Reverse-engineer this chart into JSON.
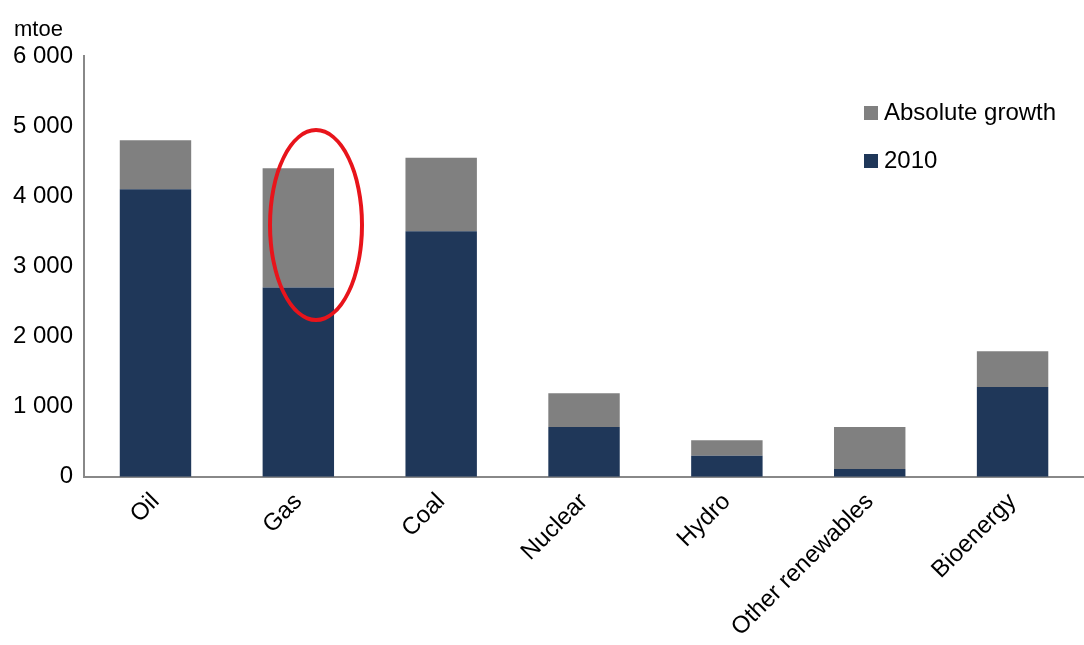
{
  "chart_data": {
    "type": "bar",
    "ylabel": "mtoe",
    "stacked": true,
    "legend": "top right",
    "grid": false,
    "categories": [
      "Oil",
      "Gas",
      "Coal",
      "Nuclear",
      "Hydro",
      "Other renewables",
      "Bioenergy"
    ],
    "series": [
      {
        "name": "2010",
        "color": "#1f3759",
        "values": [
          4100,
          2700,
          3500,
          710,
          300,
          110,
          1280
        ]
      },
      {
        "name": "Absolute growth",
        "color": "#808080",
        "values": [
          700,
          1700,
          1050,
          480,
          220,
          600,
          510
        ]
      }
    ],
    "ylim": [
      0,
      6000
    ],
    "yticks": [
      {
        "value": 0,
        "label": "0"
      },
      {
        "value": 1000,
        "label": "1 000"
      },
      {
        "value": 2000,
        "label": "2 000"
      },
      {
        "value": 3000,
        "label": "3 000"
      },
      {
        "value": 4000,
        "label": "4 000"
      },
      {
        "value": 5000,
        "label": "5 000"
      },
      {
        "value": 6000,
        "label": "6 000"
      }
    ]
  }
}
